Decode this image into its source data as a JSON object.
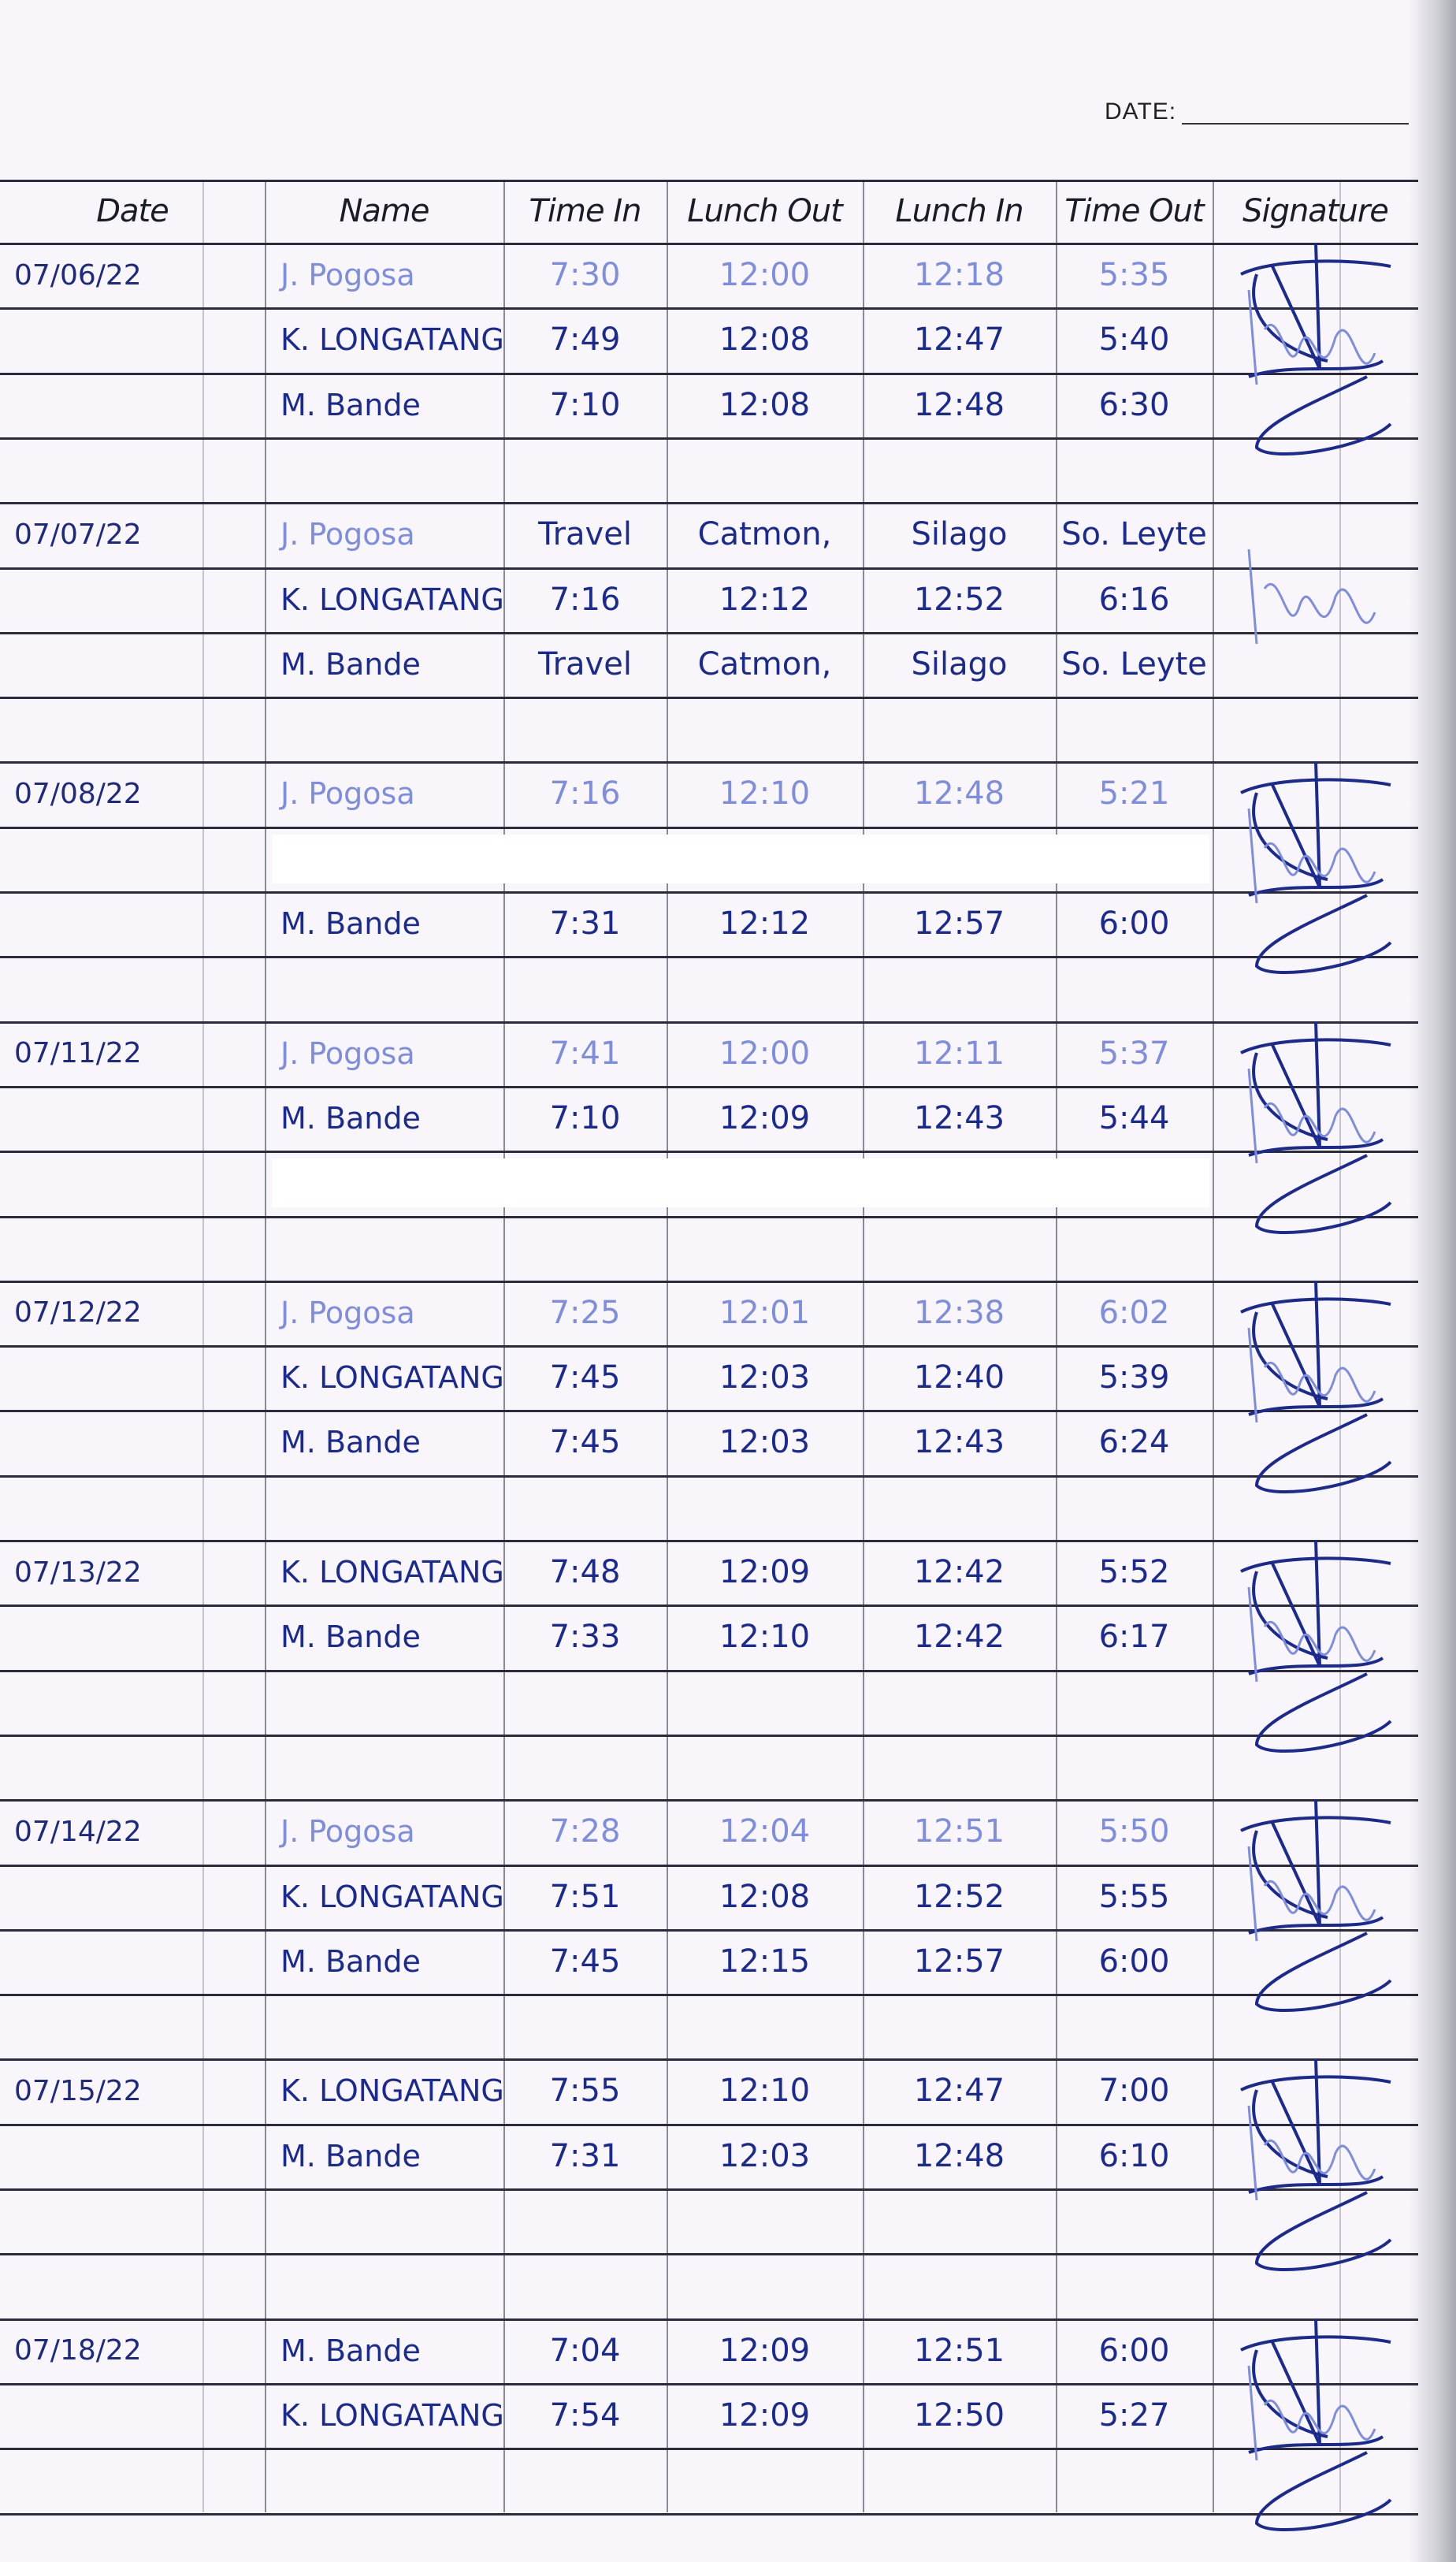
{
  "header": {
    "date_label": "DATE:"
  },
  "columns": [
    "Date",
    "Name",
    "Time In",
    "Lunch Out",
    "Lunch In",
    "Time Out",
    "Signature"
  ],
  "ink_colors": {
    "dark": "#1b2a8f",
    "light": "#7e8ddc"
  },
  "rows": [
    {
      "date": "07/06/22",
      "name": "J. Pogosa",
      "time_in": "7:30",
      "lunch_out": "12:00",
      "lunch_in": "12:18",
      "time_out": "5:35",
      "ink": "light"
    },
    {
      "date": "",
      "name": "K. LONGATANG",
      "time_in": "7:49",
      "lunch_out": "12:08",
      "lunch_in": "12:47",
      "time_out": "5:40",
      "ink": "dark"
    },
    {
      "date": "",
      "name": "M. Bande",
      "time_in": "7:10",
      "lunch_out": "12:08",
      "lunch_in": "12:48",
      "time_out": "6:30",
      "ink": "dark"
    },
    {},
    {
      "date": "07/07/22",
      "name": "J. Pogosa",
      "time_in": "Travel",
      "lunch_out": "Catmon,",
      "lunch_in": "Silago",
      "time_out": "So. Leyte",
      "ink": "light"
    },
    {
      "date": "",
      "name": "K. LONGATANG",
      "time_in": "7:16",
      "lunch_out": "12:12",
      "lunch_in": "12:52",
      "time_out": "6:16",
      "ink": "dark"
    },
    {
      "date": "",
      "name": "M. Bande",
      "time_in": "Travel",
      "lunch_out": "Catmon,",
      "lunch_in": "Silago",
      "time_out": "So. Leyte",
      "ink": "dark"
    },
    {},
    {
      "date": "07/08/22",
      "name": "J. Pogosa",
      "time_in": "7:16",
      "lunch_out": "12:10",
      "lunch_in": "12:48",
      "time_out": "5:21",
      "ink": "light"
    },
    {
      "redacted": true
    },
    {
      "date": "",
      "name": "M. Bande",
      "time_in": "7:31",
      "lunch_out": "12:12",
      "lunch_in": "12:57",
      "time_out": "6:00",
      "ink": "dark"
    },
    {},
    {
      "date": "07/11/22",
      "name": "J. Pogosa",
      "time_in": "7:41",
      "lunch_out": "12:00",
      "lunch_in": "12:11",
      "time_out": "5:37",
      "ink": "light"
    },
    {
      "date": "",
      "name": "M. Bande",
      "time_in": "7:10",
      "lunch_out": "12:09",
      "lunch_in": "12:43",
      "time_out": "5:44",
      "ink": "dark"
    },
    {
      "redacted": true
    },
    {},
    {
      "date": "07/12/22",
      "name": "J. Pogosa",
      "time_in": "7:25",
      "lunch_out": "12:01",
      "lunch_in": "12:38",
      "time_out": "6:02",
      "ink": "light"
    },
    {
      "date": "",
      "name": "K. LONGATANG",
      "time_in": "7:45",
      "lunch_out": "12:03",
      "lunch_in": "12:40",
      "time_out": "5:39",
      "ink": "dark"
    },
    {
      "date": "",
      "name": "M. Bande",
      "time_in": "7:45",
      "lunch_out": "12:03",
      "lunch_in": "12:43",
      "time_out": "6:24",
      "ink": "dark"
    },
    {},
    {
      "date": "07/13/22",
      "name": "K. LONGATANG",
      "time_in": "7:48",
      "lunch_out": "12:09",
      "lunch_in": "12:42",
      "time_out": "5:52",
      "ink": "dark"
    },
    {
      "date": "",
      "name": "M. Bande",
      "time_in": "7:33",
      "lunch_out": "12:10",
      "lunch_in": "12:42",
      "time_out": "6:17",
      "ink": "dark"
    },
    {},
    {},
    {
      "date": "07/14/22",
      "name": "J. Pogosa",
      "time_in": "7:28",
      "lunch_out": "12:04",
      "lunch_in": "12:51",
      "time_out": "5:50",
      "ink": "light"
    },
    {
      "date": "",
      "name": "K. LONGATANG",
      "time_in": "7:51",
      "lunch_out": "12:08",
      "lunch_in": "12:52",
      "time_out": "5:55",
      "ink": "dark"
    },
    {
      "date": "",
      "name": "M. Bande",
      "time_in": "7:45",
      "lunch_out": "12:15",
      "lunch_in": "12:57",
      "time_out": "6:00",
      "ink": "dark"
    },
    {},
    {
      "date": "07/15/22",
      "name": "K. LONGATANG",
      "time_in": "7:55",
      "lunch_out": "12:10",
      "lunch_in": "12:47",
      "time_out": "7:00",
      "ink": "dark"
    },
    {
      "date": "",
      "name": "M. Bande",
      "time_in": "7:31",
      "lunch_out": "12:03",
      "lunch_in": "12:48",
      "time_out": "6:10",
      "ink": "dark"
    },
    {},
    {},
    {
      "date": "07/18/22",
      "name": "M. Bande",
      "time_in": "7:04",
      "lunch_out": "12:09",
      "lunch_in": "12:51",
      "time_out": "6:00",
      "ink": "dark"
    },
    {
      "date": "",
      "name": "K. LONGATANG",
      "time_in": "7:54",
      "lunch_out": "12:09",
      "lunch_in": "12:50",
      "time_out": "5:27",
      "ink": "dark"
    },
    {}
  ],
  "signature_groups": [
    0,
    4,
    8,
    12,
    16,
    20,
    24,
    28,
    32
  ]
}
